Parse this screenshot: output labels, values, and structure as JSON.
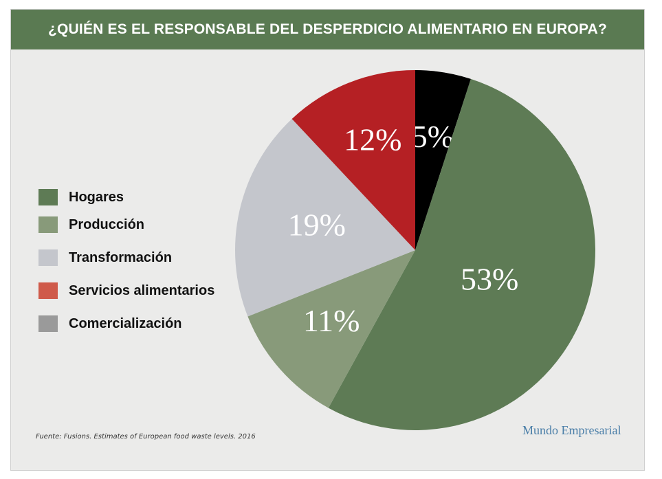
{
  "header": {
    "title": "¿QUIÉN ES EL RESPONSABLE DEL DESPERDICIO ALIMENTARIO EN EUROPA?"
  },
  "chart_data": {
    "type": "pie",
    "title": "¿QUIÉN ES EL RESPONSABLE DEL DESPERDICIO ALIMENTARIO EN EUROPA?",
    "slices": [
      {
        "name": "Comercialización",
        "value": 5,
        "label": "5%",
        "color": "#000000"
      },
      {
        "name": "Hogares",
        "value": 53,
        "label": "53%",
        "color": "#5e7b55"
      },
      {
        "name": "Producción",
        "value": 11,
        "label": "11%",
        "color": "#889a7a"
      },
      {
        "name": "Transformación",
        "value": 19,
        "label": "19%",
        "color": "#c4c6cc"
      },
      {
        "name": "Servicios alimentarios",
        "value": 12,
        "label": "12%",
        "color": "#b52024"
      }
    ],
    "legend_position": "left"
  },
  "legend": {
    "items": [
      {
        "label": "Hogares",
        "color": "#5e7b55"
      },
      {
        "label": "Producción",
        "color": "#889a7a"
      },
      {
        "label": "Transformación",
        "color": "#c4c6cc"
      },
      {
        "label": "Servicios alimentarios",
        "color": "#cf5a4a"
      },
      {
        "label": "Comercialización",
        "color": "#9a9a9a"
      }
    ]
  },
  "footer": {
    "source": "Fuente: Fusions. Estimates of European food waste levels. 2016",
    "brand": "Mundo Empresarial"
  }
}
